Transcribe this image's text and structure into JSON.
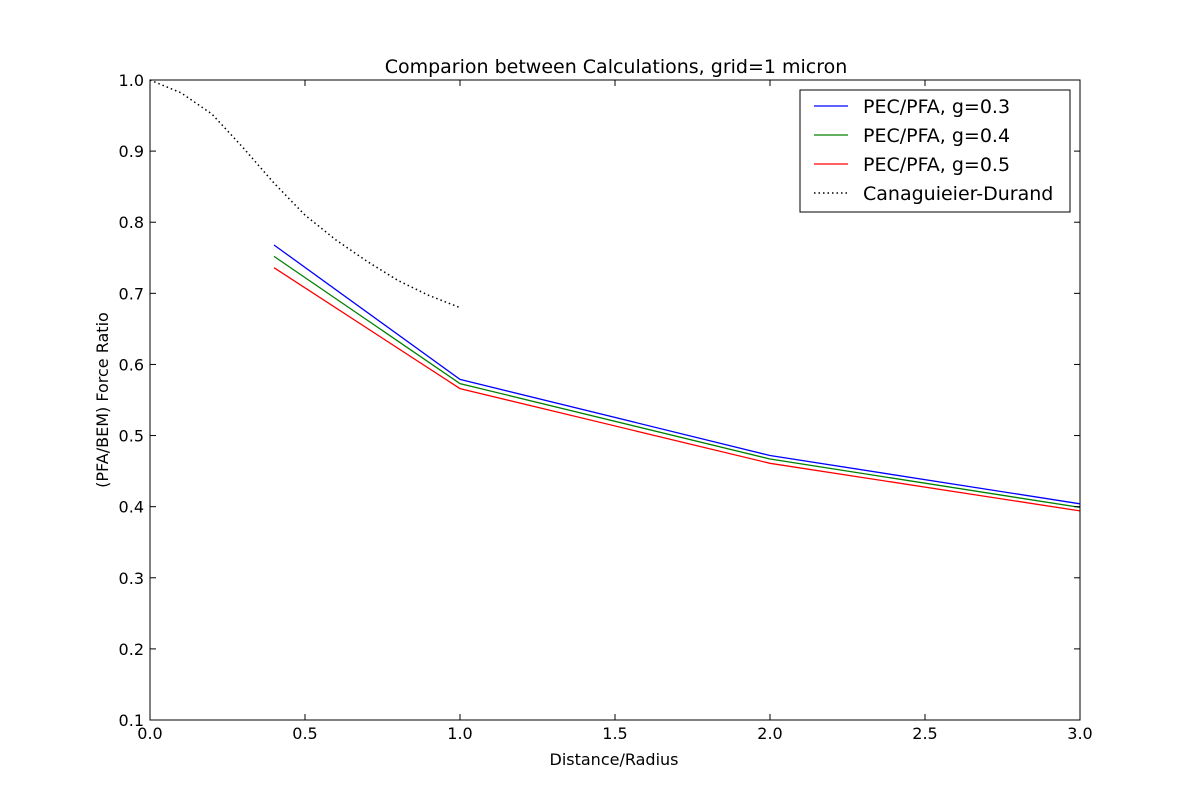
{
  "chart_data": {
    "type": "line",
    "title": "Comparion between Calculations, grid=1 micron",
    "xlabel": "Distance/Radius",
    "ylabel": "(PFA/BEM) Force Ratio",
    "xlim": [
      0.0,
      3.0
    ],
    "ylim": [
      0.1,
      1.0
    ],
    "xticks": [
      "0.0",
      "0.5",
      "1.0",
      "1.5",
      "2.0",
      "2.5",
      "3.0"
    ],
    "yticks": [
      "0.1",
      "0.2",
      "0.3",
      "0.4",
      "0.5",
      "0.6",
      "0.7",
      "0.8",
      "0.9",
      "1.0"
    ],
    "grid": false,
    "legend_position": "top-right",
    "series": [
      {
        "name": "PEC/PFA, g=0.3",
        "color": "#0000ff",
        "style": "solid",
        "x": [
          0.4,
          1.0,
          2.0,
          3.0
        ],
        "y": [
          0.768,
          0.579,
          0.472,
          0.404
        ]
      },
      {
        "name": "PEC/PFA, g=0.4",
        "color": "#008000",
        "style": "solid",
        "x": [
          0.4,
          1.0,
          2.0,
          3.0
        ],
        "y": [
          0.752,
          0.573,
          0.467,
          0.399
        ]
      },
      {
        "name": "PEC/PFA, g=0.5",
        "color": "#ff0000",
        "style": "solid",
        "x": [
          0.4,
          1.0,
          2.0,
          3.0
        ],
        "y": [
          0.736,
          0.566,
          0.461,
          0.394
        ]
      },
      {
        "name": "Canaguieier-Durand",
        "color": "#000000",
        "style": "dotted",
        "x": [
          0.0,
          0.1,
          0.2,
          0.3,
          0.4,
          0.5,
          0.6,
          0.7,
          0.8,
          0.9,
          1.0
        ],
        "y": [
          1.0,
          0.982,
          0.952,
          0.905,
          0.855,
          0.81,
          0.775,
          0.745,
          0.718,
          0.697,
          0.68
        ]
      }
    ]
  }
}
